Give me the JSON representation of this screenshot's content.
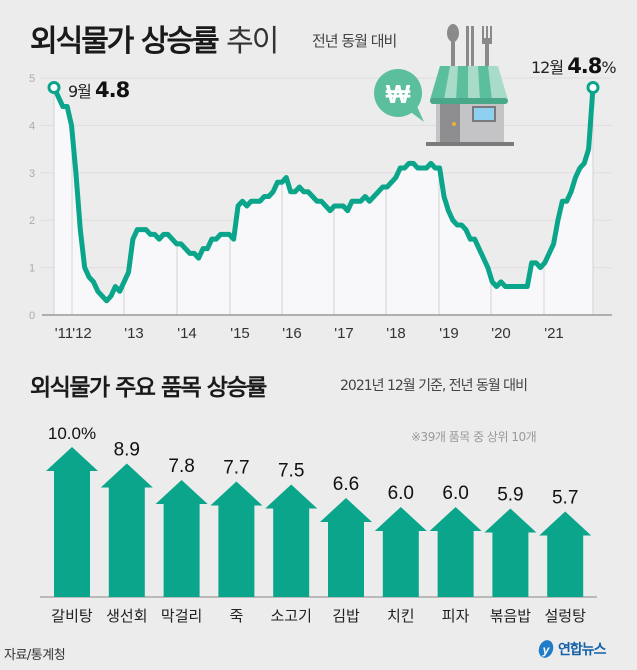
{
  "header": {
    "title_bold": "외식물가 상승률",
    "title_light": "추이",
    "subtitle": "전년 동월 대비"
  },
  "annotations": {
    "start_month": "9월",
    "start_value": "4.8",
    "end_month": "12월",
    "end_value": "4.8",
    "end_unit": "%"
  },
  "icons": {
    "store": "restaurant-store-icon",
    "won": "won-speech-bubble-icon",
    "won_symbol": "₩"
  },
  "colors": {
    "accent": "#0aa58a",
    "background": "#ececec",
    "plot_bg": "#f8f8fa",
    "grid": "#dedede",
    "awning_dark": "#5bbf9e",
    "awning_light": "#a8dcc8",
    "logo": "#1560a8"
  },
  "section2": {
    "title": "외식물가 주요 품목 상승률",
    "subtitle": "2021년 12월 기준, 전년 동월 대비",
    "note": "※39개 품목 중 상위 10개"
  },
  "footer": {
    "source": "자료/통계청",
    "logo_text": "연합뉴스"
  },
  "chart_data": [
    {
      "type": "line",
      "title": "외식물가 상승률 추이",
      "subtitle": "전년 동월 대비",
      "xlabel": "",
      "ylabel": "",
      "ylim": [
        0,
        5
      ],
      "yticks": [
        0,
        1,
        2,
        3,
        4,
        5
      ],
      "xticks": [
        "'11",
        "'12",
        "'13",
        "'14",
        "'15",
        "'16",
        "'17",
        "'18",
        "'19",
        "'20",
        "'21"
      ],
      "grid": true,
      "x_start": "2011-09",
      "x_end": "2021-12",
      "series": [
        {
          "name": "외식물가 상승률(%)",
          "values": [
            4.8,
            4.6,
            4.4,
            4.4,
            4.0,
            3.0,
            1.8,
            1.0,
            0.8,
            0.7,
            0.5,
            0.4,
            0.3,
            0.4,
            0.6,
            0.5,
            0.7,
            0.9,
            1.6,
            1.8,
            1.8,
            1.8,
            1.7,
            1.7,
            1.6,
            1.7,
            1.7,
            1.6,
            1.5,
            1.5,
            1.4,
            1.3,
            1.3,
            1.2,
            1.4,
            1.4,
            1.6,
            1.6,
            1.7,
            1.7,
            1.7,
            1.6,
            2.3,
            2.4,
            2.3,
            2.4,
            2.4,
            2.4,
            2.5,
            2.5,
            2.6,
            2.8,
            2.8,
            2.9,
            2.6,
            2.6,
            2.7,
            2.6,
            2.6,
            2.5,
            2.4,
            2.4,
            2.3,
            2.2,
            2.3,
            2.3,
            2.3,
            2.2,
            2.4,
            2.4,
            2.4,
            2.5,
            2.4,
            2.5,
            2.6,
            2.7,
            2.7,
            2.8,
            2.9,
            3.1,
            3.1,
            3.2,
            3.2,
            3.1,
            3.1,
            3.1,
            3.2,
            3.1,
            3.1,
            2.5,
            2.2,
            2.0,
            1.9,
            1.9,
            1.8,
            1.6,
            1.6,
            1.4,
            1.2,
            1.0,
            0.7,
            0.6,
            0.7,
            0.6,
            0.6,
            0.6,
            0.6,
            0.6,
            0.6,
            1.1,
            1.1,
            1.0,
            1.1,
            1.3,
            1.5,
            2.0,
            2.4,
            2.4,
            2.6,
            2.9,
            3.1,
            3.2,
            3.5,
            4.8
          ]
        }
      ]
    },
    {
      "type": "bar",
      "title": "외식물가 주요 품목 상승률",
      "subtitle": "2021년 12월 기준, 전년 동월 대비",
      "note": "※39개 품목 중 상위 10개",
      "xlabel": "",
      "ylabel": "",
      "unit": "%",
      "categories": [
        "갈비탕",
        "생선회",
        "막걸리",
        "죽",
        "소고기",
        "김밥",
        "치킨",
        "피자",
        "볶음밥",
        "설렁탕"
      ],
      "values": [
        10.0,
        8.9,
        7.8,
        7.7,
        7.5,
        6.6,
        6.0,
        6.0,
        5.9,
        5.7
      ],
      "labels": [
        "10.0%",
        "8.9",
        "7.8",
        "7.7",
        "7.5",
        "6.6",
        "6.0",
        "6.0",
        "5.9",
        "5.7"
      ]
    }
  ]
}
